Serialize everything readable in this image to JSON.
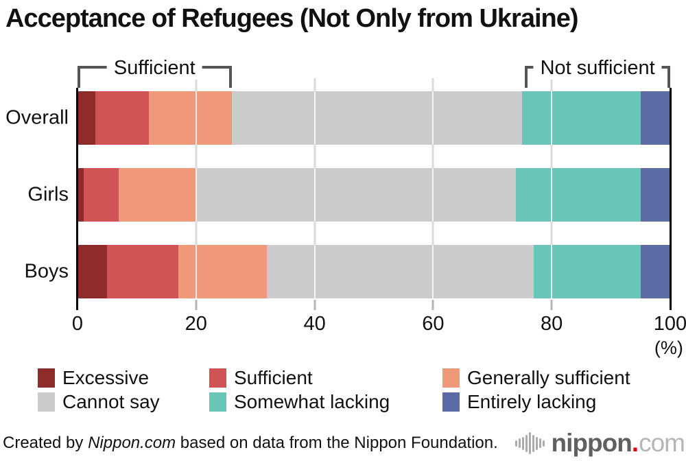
{
  "title": "Acceptance of Refugees (Not Only from Ukraine)",
  "chart_data": {
    "type": "bar",
    "orientation": "horizontal-stacked",
    "categories": [
      "Overall",
      "Girls",
      "Boys"
    ],
    "series": [
      {
        "name": "Excessive",
        "color": "#8e2b2b",
        "values": [
          3,
          1,
          5
        ]
      },
      {
        "name": "Sufficient",
        "color": "#d05456",
        "values": [
          9,
          6,
          12
        ]
      },
      {
        "name": "Generally sufficient",
        "color": "#f0997a",
        "values": [
          14,
          13,
          15
        ]
      },
      {
        "name": "Cannot say",
        "color": "#cbcbcb",
        "values": [
          49,
          54,
          45
        ]
      },
      {
        "name": "Somewhat lacking",
        "color": "#69c5b8",
        "values": [
          20,
          21,
          18
        ]
      },
      {
        "name": "Entirely lacking",
        "color": "#5a6ba6",
        "values": [
          5,
          5,
          5
        ]
      }
    ],
    "xlabel": "(%)",
    "xlim": [
      0,
      100
    ],
    "xticks": [
      0,
      20,
      40,
      60,
      80,
      100
    ],
    "grid": true,
    "legend_position": "bottom",
    "annotations": [
      {
        "label": "Sufficient",
        "from": 0,
        "to": 26
      },
      {
        "label": "Not sufficient",
        "from": 75.5,
        "to": 100
      }
    ],
    "bracket_color": "#555555"
  },
  "footer": {
    "credit_prefix": "Created by ",
    "credit_source": "Nippon.com",
    "credit_suffix": " based on data from the Nippon Foundation.",
    "logo": {
      "icon": "waveform-icon",
      "name": "nippon",
      "dot": ".",
      "tld": "com",
      "dot_color": "#e60012"
    }
  }
}
